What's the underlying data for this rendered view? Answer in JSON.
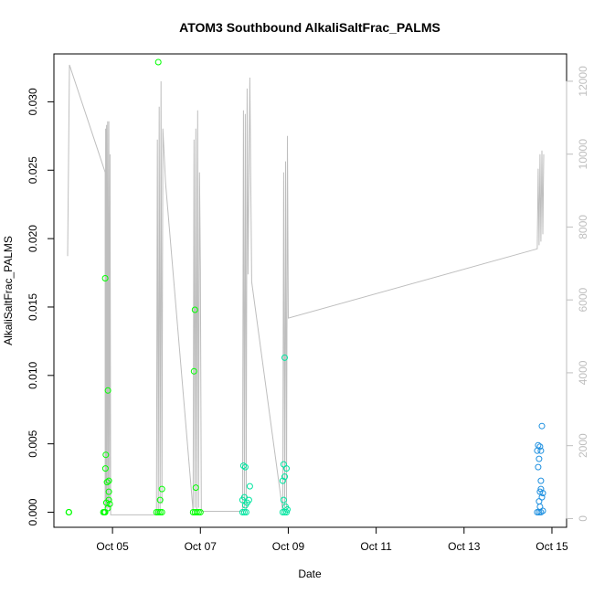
{
  "chart_data": {
    "type": "scatter",
    "title": "ATOM3 Southbound AlkaliSaltFrac_PALMS",
    "xlabel": "Date",
    "ylabel": "AlkaliSaltFrac_PALMS",
    "xlim": [
      "2017-10-03T16:00",
      "2017-10-15T08:00"
    ],
    "ylim": [
      -0.0011,
      0.0335
    ],
    "y2lim": [
      -240,
      12750
    ],
    "grid": false,
    "x_ticks": [
      {
        "date": "2017-10-05",
        "label": "Oct 05"
      },
      {
        "date": "2017-10-07",
        "label": "Oct 07"
      },
      {
        "date": "2017-10-09",
        "label": "Oct 09"
      },
      {
        "date": "2017-10-11",
        "label": "Oct 11"
      },
      {
        "date": "2017-10-13",
        "label": "Oct 13"
      },
      {
        "date": "2017-10-15",
        "label": "Oct 15"
      }
    ],
    "y_ticks": [
      "0.000",
      "0.005",
      "0.010",
      "0.015",
      "0.020",
      "0.025",
      "0.030"
    ],
    "y_tick_values": [
      0,
      0.005,
      0.01,
      0.015,
      0.02,
      0.025,
      0.03
    ],
    "y2_ticks": [
      "0",
      "2000",
      "4000",
      "6000",
      "8000",
      "10000",
      "12000"
    ],
    "y2_tick_values": [
      0,
      2000,
      4000,
      6000,
      8000,
      10000,
      12000
    ],
    "colors": {
      "axis": "#000000",
      "altitude_line": "#bebebe",
      "point_early": "#00ff00",
      "point_mid": "#00e5a0",
      "point_late": "#1e90e0"
    },
    "series": [
      {
        "kind": "points",
        "y_axis": "left",
        "points": [
          {
            "x": "2017-10-04T00:05",
            "y": 0.0
          },
          {
            "x": "2017-10-04T00:15",
            "y": 0.0
          },
          {
            "x": "2017-10-04T19:00",
            "y": 0.0
          },
          {
            "x": "2017-10-04T19:30",
            "y": 0.0
          },
          {
            "x": "2017-10-04T20:00",
            "y": 0.0
          },
          {
            "x": "2017-10-04T20:00",
            "y": 0.0171
          },
          {
            "x": "2017-10-04T20:10",
            "y": 0.0032
          },
          {
            "x": "2017-10-04T20:20",
            "y": 0.0042
          },
          {
            "x": "2017-10-04T20:40",
            "y": 0.0007
          },
          {
            "x": "2017-10-04T21:00",
            "y": 0.0022
          },
          {
            "x": "2017-10-04T21:30",
            "y": 0.0089
          },
          {
            "x": "2017-10-04T22:00",
            "y": 0.0023
          },
          {
            "x": "2017-10-04T22:00",
            "y": 0.0009
          },
          {
            "x": "2017-10-04T21:30",
            "y": 0.0003
          },
          {
            "x": "2017-10-04T22:30",
            "y": 0.0006
          },
          {
            "x": "2017-10-04T22:00",
            "y": 0.0015
          },
          {
            "x": "2017-10-06T00:00",
            "y": 0.0
          },
          {
            "x": "2017-10-06T01:00",
            "y": 0.0
          },
          {
            "x": "2017-10-06T02:00",
            "y": 0.0
          },
          {
            "x": "2017-10-06T03:00",
            "y": 0.0
          },
          {
            "x": "2017-10-06T01:00",
            "y": 0.0329
          },
          {
            "x": "2017-10-06T02:00",
            "y": 0.0009
          },
          {
            "x": "2017-10-06T03:00",
            "y": 0.0017
          },
          {
            "x": "2017-10-06T20:00",
            "y": 0.0
          },
          {
            "x": "2017-10-06T21:00",
            "y": 0.0
          },
          {
            "x": "2017-10-06T22:00",
            "y": 0.0
          },
          {
            "x": "2017-10-06T23:00",
            "y": 0.0
          },
          {
            "x": "2017-10-07T00:00",
            "y": 0.0
          },
          {
            "x": "2017-10-06T20:30",
            "y": 0.0103
          },
          {
            "x": "2017-10-06T21:00",
            "y": 0.0148
          },
          {
            "x": "2017-10-06T21:30",
            "y": 0.0018
          },
          {
            "x": "2017-10-07T23:00",
            "y": 0.0
          },
          {
            "x": "2017-10-08T00:00",
            "y": 0.0
          },
          {
            "x": "2017-10-08T01:00",
            "y": 0.0
          },
          {
            "x": "2017-10-07T23:30",
            "y": 0.0034
          },
          {
            "x": "2017-10-08T00:30",
            "y": 0.0033
          },
          {
            "x": "2017-10-07T23:00",
            "y": 0.0009
          },
          {
            "x": "2017-10-08T00:00",
            "y": 0.0011
          },
          {
            "x": "2017-10-08T00:30",
            "y": 0.0005
          },
          {
            "x": "2017-10-08T01:30",
            "y": 0.0007
          },
          {
            "x": "2017-10-08T02:30",
            "y": 0.0009
          },
          {
            "x": "2017-10-08T03:00",
            "y": 0.0019
          },
          {
            "x": "2017-10-08T21:00",
            "y": 0.0
          },
          {
            "x": "2017-10-08T22:00",
            "y": 0.0
          },
          {
            "x": "2017-10-08T23:00",
            "y": 0.0
          },
          {
            "x": "2017-10-08T21:30",
            "y": 0.0035
          },
          {
            "x": "2017-10-08T21:00",
            "y": 0.0023
          },
          {
            "x": "2017-10-08T22:00",
            "y": 0.0026
          },
          {
            "x": "2017-10-08T23:00",
            "y": 0.0032
          },
          {
            "x": "2017-10-08T22:00",
            "y": 0.0113
          },
          {
            "x": "2017-10-08T22:30",
            "y": 0.0004
          },
          {
            "x": "2017-10-08T23:30",
            "y": 0.0002
          },
          {
            "x": "2017-10-08T21:30",
            "y": 0.0009
          },
          {
            "x": "2017-10-14T16:00",
            "y": 0.0
          },
          {
            "x": "2017-10-14T17:00",
            "y": 0.0
          },
          {
            "x": "2017-10-14T18:00",
            "y": 0.0
          },
          {
            "x": "2017-10-14T16:30",
            "y": 0.0049
          },
          {
            "x": "2017-10-14T17:00",
            "y": 0.0039
          },
          {
            "x": "2017-10-14T17:30",
            "y": 0.0048
          },
          {
            "x": "2017-10-14T18:00",
            "y": 0.0045
          },
          {
            "x": "2017-10-14T18:30",
            "y": 0.0063
          },
          {
            "x": "2017-10-14T16:30",
            "y": 0.0033
          },
          {
            "x": "2017-10-14T17:30",
            "y": 0.0015
          },
          {
            "x": "2017-10-14T18:00",
            "y": 0.0023
          },
          {
            "x": "2017-10-14T18:30",
            "y": 0.0011
          },
          {
            "x": "2017-10-14T17:00",
            "y": 0.0008
          },
          {
            "x": "2017-10-14T18:00",
            "y": 0.0017
          },
          {
            "x": "2017-10-14T17:30",
            "y": 0.0004
          },
          {
            "x": "2017-10-14T19:00",
            "y": 0.0014
          },
          {
            "x": "2017-10-14T19:00",
            "y": 0.0001
          },
          {
            "x": "2017-10-14T16:00",
            "y": 0.0045
          }
        ]
      },
      {
        "kind": "line",
        "y_axis": "right",
        "points": [
          {
            "x": "2017-10-03T23:30",
            "y": 7200
          },
          {
            "x": "2017-10-04T00:30",
            "y": 12450
          },
          {
            "x": "2017-10-04T20:00",
            "y": 9500
          },
          {
            "x": "2017-10-04T20:00",
            "y": 200
          },
          {
            "x": "2017-10-04T20:15",
            "y": 10700
          },
          {
            "x": "2017-10-04T20:30",
            "y": 300
          },
          {
            "x": "2017-10-04T20:45",
            "y": 10800
          },
          {
            "x": "2017-10-04T21:00",
            "y": 200
          },
          {
            "x": "2017-10-04T21:20",
            "y": 10900
          },
          {
            "x": "2017-10-04T21:40",
            "y": 300
          },
          {
            "x": "2017-10-04T22:00",
            "y": 10900
          },
          {
            "x": "2017-10-04T22:20",
            "y": 200
          },
          {
            "x": "2017-10-04T22:40",
            "y": 10000
          },
          {
            "x": "2017-10-04T23:00",
            "y": 100
          },
          {
            "x": "2017-10-06T00:00",
            "y": 100
          },
          {
            "x": "2017-10-06T00:30",
            "y": 10400
          },
          {
            "x": "2017-10-06T01:00",
            "y": 100
          },
          {
            "x": "2017-10-06T01:30",
            "y": 11300
          },
          {
            "x": "2017-10-06T02:00",
            "y": 200
          },
          {
            "x": "2017-10-06T02:30",
            "y": 12000
          },
          {
            "x": "2017-10-06T03:00",
            "y": 400
          },
          {
            "x": "2017-10-06T03:30",
            "y": 10700
          },
          {
            "x": "2017-10-06T05:00",
            "y": 9200
          },
          {
            "x": "2017-10-06T20:00",
            "y": 200
          },
          {
            "x": "2017-10-06T20:30",
            "y": 10400
          },
          {
            "x": "2017-10-06T21:00",
            "y": 300
          },
          {
            "x": "2017-10-06T21:30",
            "y": 10700
          },
          {
            "x": "2017-10-06T22:00",
            "y": 200
          },
          {
            "x": "2017-10-06T22:30",
            "y": 11200
          },
          {
            "x": "2017-10-06T23:00",
            "y": 300
          },
          {
            "x": "2017-10-06T23:30",
            "y": 9500
          },
          {
            "x": "2017-10-07T00:00",
            "y": 6800
          },
          {
            "x": "2017-10-07T00:30",
            "y": 200
          },
          {
            "x": "2017-10-07T23:00",
            "y": 200
          },
          {
            "x": "2017-10-07T23:30",
            "y": 11200
          },
          {
            "x": "2017-10-08T00:00",
            "y": 300
          },
          {
            "x": "2017-10-08T00:30",
            "y": 11100
          },
          {
            "x": "2017-10-08T01:00",
            "y": 200
          },
          {
            "x": "2017-10-08T01:30",
            "y": 11800
          },
          {
            "x": "2017-10-08T02:00",
            "y": 6700
          },
          {
            "x": "2017-10-08T03:00",
            "y": 12100
          },
          {
            "x": "2017-10-08T04:00",
            "y": 6500
          },
          {
            "x": "2017-10-08T21:00",
            "y": 200
          },
          {
            "x": "2017-10-08T21:30",
            "y": 9500
          },
          {
            "x": "2017-10-08T22:00",
            "y": 300
          },
          {
            "x": "2017-10-08T22:30",
            "y": 9800
          },
          {
            "x": "2017-10-08T23:00",
            "y": 200
          },
          {
            "x": "2017-10-08T23:30",
            "y": 10500
          },
          {
            "x": "2017-10-09T00:00",
            "y": 5500
          },
          {
            "x": "2017-10-14T16:00",
            "y": 7400
          },
          {
            "x": "2017-10-14T16:30",
            "y": 9600
          },
          {
            "x": "2017-10-14T17:00",
            "y": 7500
          },
          {
            "x": "2017-10-14T17:30",
            "y": 10000
          },
          {
            "x": "2017-10-14T18:00",
            "y": 7600
          },
          {
            "x": "2017-10-14T18:30",
            "y": 10100
          },
          {
            "x": "2017-10-14T19:00",
            "y": 7800
          },
          {
            "x": "2017-10-14T19:30",
            "y": 10000
          }
        ]
      }
    ]
  }
}
